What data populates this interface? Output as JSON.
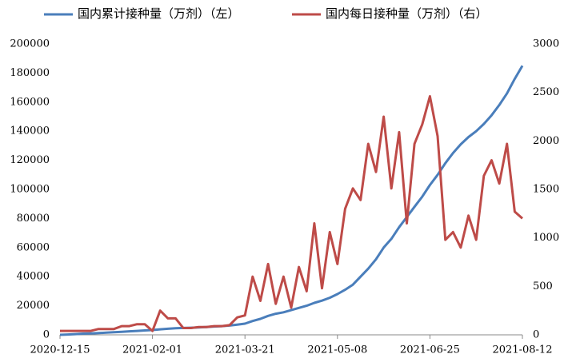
{
  "chart_data": {
    "type": "line",
    "x": [
      "2020-12-15",
      "2020-12-19",
      "2020-12-23",
      "2020-12-27",
      "2020-12-31",
      "2021-01-04",
      "2021-01-08",
      "2021-01-12",
      "2021-01-16",
      "2021-01-20",
      "2021-01-24",
      "2021-01-28",
      "2021-02-01",
      "2021-02-05",
      "2021-02-09",
      "2021-02-13",
      "2021-02-17",
      "2021-02-21",
      "2021-02-25",
      "2021-03-01",
      "2021-03-05",
      "2021-03-09",
      "2021-03-13",
      "2021-03-17",
      "2021-03-21",
      "2021-03-25",
      "2021-03-29",
      "2021-04-02",
      "2021-04-06",
      "2021-04-10",
      "2021-04-14",
      "2021-04-18",
      "2021-04-22",
      "2021-04-26",
      "2021-04-30",
      "2021-05-04",
      "2021-05-08",
      "2021-05-12",
      "2021-05-16",
      "2021-05-20",
      "2021-05-24",
      "2021-05-28",
      "2021-06-01",
      "2021-06-05",
      "2021-06-09",
      "2021-06-13",
      "2021-06-17",
      "2021-06-21",
      "2021-06-25",
      "2021-06-29",
      "2021-07-03",
      "2021-07-07",
      "2021-07-11",
      "2021-07-15",
      "2021-07-19",
      "2021-07-23",
      "2021-07-27",
      "2021-07-31",
      "2021-08-04",
      "2021-08-08",
      "2021-08-12"
    ],
    "series": [
      {
        "name": "国内累计接种量（万剂）（左）",
        "color": "#4a7ebb",
        "axis": "y",
        "values": [
          0,
          200,
          500,
          800,
          1000,
          1200,
          1500,
          1800,
          2100,
          2400,
          2700,
          3000,
          3300,
          3800,
          4200,
          4500,
          4700,
          4900,
          5100,
          5400,
          5700,
          6000,
          6400,
          7000,
          7700,
          9500,
          11000,
          13000,
          14500,
          15500,
          17000,
          18500,
          20000,
          22000,
          23500,
          25500,
          28000,
          31000,
          34500,
          40000,
          45500,
          52000,
          60000,
          66000,
          74000,
          81000,
          88000,
          95000,
          103000,
          110000,
          118000,
          125000,
          131000,
          136000,
          140000,
          145000,
          151000,
          158000,
          166000,
          176000,
          185000
        ]
      },
      {
        "name": "国内每日接种量（万剂）（右）",
        "color": "#be4b48",
        "axis": "y2",
        "values": [
          40,
          40,
          40,
          40,
          40,
          60,
          60,
          60,
          90,
          90,
          110,
          110,
          40,
          250,
          170,
          170,
          70,
          70,
          80,
          80,
          90,
          90,
          100,
          180,
          200,
          600,
          350,
          730,
          320,
          600,
          280,
          700,
          450,
          1150,
          480,
          1060,
          730,
          1300,
          1510,
          1390,
          1970,
          1680,
          2250,
          1510,
          2090,
          1150,
          1970,
          2170,
          2460,
          2050,
          980,
          1060,
          900,
          1230,
          980,
          1640,
          1800,
          1560,
          1970,
          1270,
          1200
        ]
      }
    ],
    "xlim": [
      "2020-12-15",
      "2021-08-12"
    ],
    "xticks": [
      "2020-12-15",
      "2021-02-01",
      "2021-03-21",
      "2021-05-08",
      "2021-06-25",
      "2021-08-12"
    ],
    "ylim": [
      0,
      200000
    ],
    "yticks": [
      0,
      20000,
      40000,
      60000,
      80000,
      100000,
      120000,
      140000,
      160000,
      180000,
      200000
    ],
    "y2lim": [
      0,
      3000
    ],
    "y2ticks": [
      0,
      500,
      1000,
      1500,
      2000,
      2500,
      3000
    ]
  }
}
